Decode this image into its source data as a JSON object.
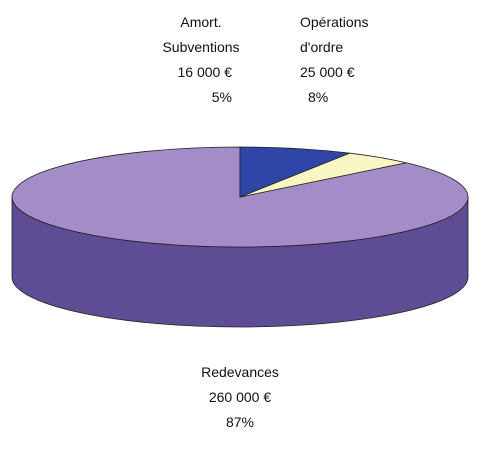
{
  "chart_data": {
    "type": "pie3d",
    "categories": [
      "Redevances",
      "Opérations d'ordre",
      "Amort. Subventions"
    ],
    "values": [
      87,
      8,
      5
    ],
    "value_labels": [
      "87%",
      "8%",
      "5%"
    ],
    "amount_labels": [
      "260 000 €",
      "25 000 €",
      "16 000 €"
    ],
    "colors": [
      "#a48cc8",
      "#2f46a8",
      "#f8f6c2"
    ],
    "side_colors": [
      "#5e4c94",
      "#1e2d78",
      "#b9b78a"
    ]
  }
}
